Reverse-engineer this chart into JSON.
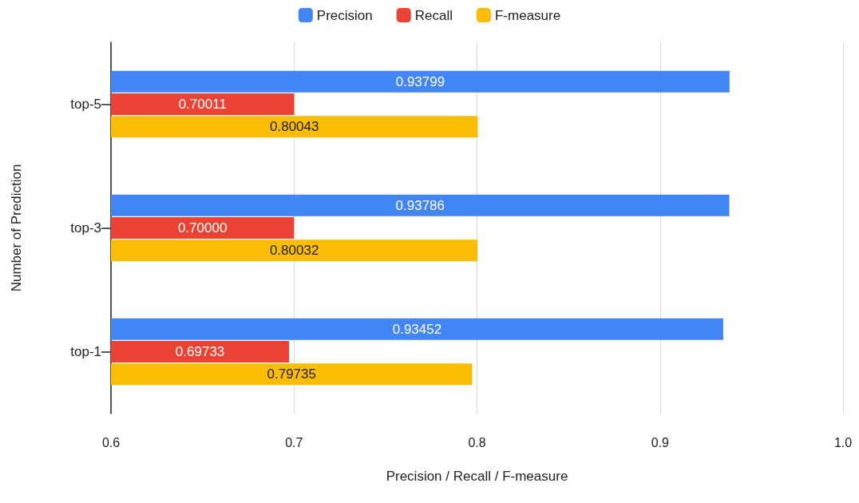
{
  "chart_data": {
    "type": "bar",
    "orientation": "horizontal",
    "xlabel": "Precision / Recall / F-measure",
    "ylabel": "Number of Prediction",
    "categories": [
      "top-5",
      "top-3",
      "top-1"
    ],
    "series": [
      {
        "name": "Precision",
        "color": "#4285f4",
        "values": [
          0.93799,
          0.93786,
          0.93452
        ],
        "value_labels": [
          "0.93799",
          "0.93786",
          "0.93452"
        ]
      },
      {
        "name": "Recall",
        "color": "#ea4335",
        "values": [
          0.70011,
          0.7,
          0.69733
        ],
        "value_labels": [
          "0.70011",
          "0.70000",
          "0.69733"
        ]
      },
      {
        "name": "F-measure",
        "color": "#fbbc04",
        "values": [
          0.80043,
          0.80032,
          0.79735
        ],
        "value_labels": [
          "0.80043",
          "0.80032",
          "0.79735"
        ]
      }
    ],
    "xlim": [
      0.6,
      1.0
    ],
    "xticks": [
      0.6,
      0.7,
      0.8,
      0.9,
      {
        "value": 1.0,
        "label": "1.0"
      }
    ],
    "grid": "x",
    "legend": "top"
  }
}
